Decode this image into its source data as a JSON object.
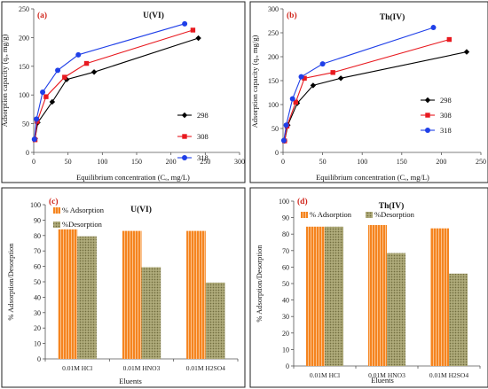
{
  "chart_data": [
    {
      "type": "line",
      "panel": "(a)",
      "title": "U(VI)",
      "xlabel": "Equilibrium concentration (Cₑ, mg/L)",
      "ylabel": "Adsorption capacity (qₑ, mg/g)",
      "xlim": [
        0,
        300
      ],
      "ylim": [
        0,
        250
      ],
      "xticks": [
        0,
        50,
        100,
        150,
        200,
        250,
        300
      ],
      "yticks": [
        0,
        50,
        100,
        150,
        200,
        250
      ],
      "grid": false,
      "legend_position": "right",
      "series": [
        {
          "name": "298",
          "color": "#000000",
          "marker": "diamond",
          "x": [
            2,
            6,
            27,
            48,
            88,
            240
          ],
          "y": [
            24,
            52,
            88,
            127,
            140,
            199
          ]
        },
        {
          "name": "308",
          "color": "#e8191f",
          "marker": "square",
          "x": [
            2,
            5,
            18,
            45,
            77,
            232
          ],
          "y": [
            22,
            54,
            97,
            131,
            155,
            213
          ]
        },
        {
          "name": "318",
          "color": "#1f3fe8",
          "marker": "circle",
          "x": [
            1,
            4,
            13,
            35,
            65,
            220
          ],
          "y": [
            23,
            58,
            105,
            143,
            170,
            224
          ]
        }
      ]
    },
    {
      "type": "line",
      "panel": "(b)",
      "title": "Th(IV)",
      "xlabel": "Equilibrium concentration (Cₑ, mg/L)",
      "ylabel": "Adsorption capacity (qₑ, mg/g)",
      "xlim": [
        0,
        250
      ],
      "ylim": [
        0,
        300
      ],
      "xticks": [
        0,
        50,
        100,
        150,
        200,
        250
      ],
      "yticks": [
        0,
        50,
        100,
        150,
        200,
        250,
        300
      ],
      "grid": false,
      "legend_position": "right",
      "series": [
        {
          "name": "298",
          "color": "#000000",
          "marker": "diamond",
          "x": [
            2,
            6,
            18,
            38,
            73,
            232
          ],
          "y": [
            24,
            57,
            103,
            140,
            155,
            210
          ]
        },
        {
          "name": "308",
          "color": "#e8191f",
          "marker": "square",
          "x": [
            2,
            5,
            16,
            27,
            63,
            210
          ],
          "y": [
            24,
            55,
            105,
            155,
            167,
            236
          ]
        },
        {
          "name": "318",
          "color": "#1f3fe8",
          "marker": "circle",
          "x": [
            1,
            4,
            12,
            23,
            50,
            190
          ],
          "y": [
            25,
            57,
            112,
            158,
            185,
            261
          ]
        }
      ]
    },
    {
      "type": "bar",
      "panel": "(c)",
      "title": "U(VI)",
      "xlabel": "Eluents",
      "ylabel": "% Adsorption/Desorption",
      "ylim": [
        0,
        100
      ],
      "yticks": [
        0,
        10,
        20,
        30,
        40,
        50,
        60,
        70,
        80,
        90,
        100
      ],
      "grid": false,
      "legend_position": "top",
      "categories": [
        "0.01M HCl",
        "0.01M HNO3",
        "0.01M H2SO4"
      ],
      "series": [
        {
          "name": "% Adsorption",
          "color": "#f5841f",
          "pattern": "vertical-stripes",
          "values": [
            84,
            83,
            83
          ]
        },
        {
          "name": "%Desorption",
          "color": "#a09c6a",
          "pattern": "dots",
          "values": [
            79.5,
            59.5,
            49.5
          ]
        }
      ]
    },
    {
      "type": "bar",
      "panel": "(d)",
      "title": "Th(IV)",
      "xlabel": "Eluents",
      "ylabel": "% Adsorption/Desorption",
      "ylim": [
        0,
        100
      ],
      "yticks": [
        0,
        10,
        20,
        30,
        40,
        50,
        60,
        70,
        80,
        90,
        100
      ],
      "grid": false,
      "legend_position": "top",
      "categories": [
        "0.01M HCl",
        "0.01M HNO3",
        "0.01M H2SO4"
      ],
      "series": [
        {
          "name": "% Adsorption",
          "color": "#f5841f",
          "pattern": "vertical-stripes",
          "values": [
            84.5,
            85.5,
            83.5
          ]
        },
        {
          "name": "%Desorption",
          "color": "#a09c6a",
          "pattern": "dots",
          "values": [
            84.5,
            68.5,
            56
          ]
        }
      ]
    }
  ]
}
